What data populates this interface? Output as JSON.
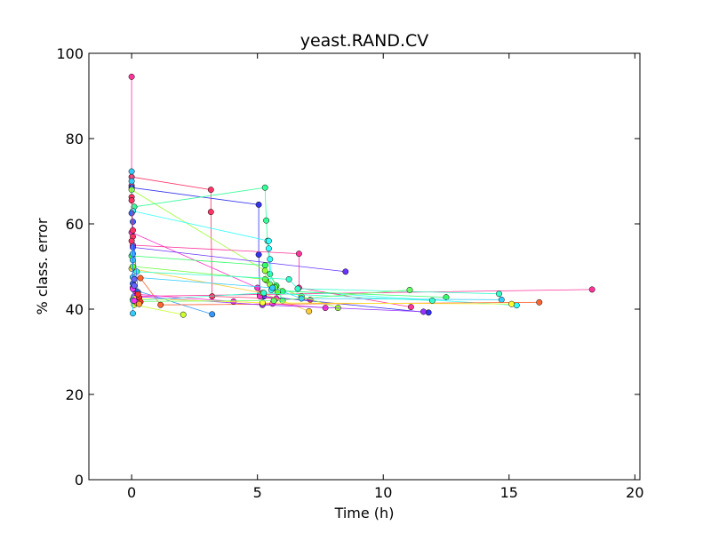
{
  "chart_data": {
    "type": "scatter",
    "title": "yeast.RAND.CV",
    "xlabel": "Time (h)",
    "ylabel": "% class. error",
    "xlim": [
      -1.7,
      20.2
    ],
    "ylim": [
      0,
      100
    ],
    "xticks": [
      0,
      5,
      10,
      15,
      20
    ],
    "yticks": [
      0,
      20,
      40,
      60,
      80,
      100
    ],
    "xtick_labels": [
      "0",
      "5",
      "10",
      "15",
      "20"
    ],
    "ytick_labels": [
      "0",
      "20",
      "40",
      "60",
      "80",
      "100"
    ],
    "grid": false,
    "legend": "none",
    "series": [
      {
        "color": "#ff3399",
        "points": [
          [
            0.0,
            94.5
          ],
          [
            0.0,
            69.0
          ],
          [
            0.05,
            45.0
          ],
          [
            0.15,
            43.0
          ],
          [
            18.3,
            44.6
          ]
        ]
      },
      {
        "color": "#ff3366",
        "points": [
          [
            0.0,
            71.0
          ],
          [
            3.15,
            68.0
          ],
          [
            3.15,
            62.8
          ],
          [
            3.2,
            43.0
          ],
          [
            7.1,
            42.2
          ]
        ]
      },
      {
        "color": "#3333ee",
        "points": [
          [
            0.0,
            68.5
          ],
          [
            5.05,
            64.5
          ],
          [
            5.05,
            52.8
          ],
          [
            5.1,
            43.5
          ],
          [
            5.25,
            43.0
          ],
          [
            11.8,
            39.2
          ]
        ]
      },
      {
        "color": "#99ff33",
        "points": [
          [
            0.0,
            68.0
          ],
          [
            5.3,
            49.0
          ],
          [
            5.35,
            46.8
          ],
          [
            5.5,
            45.8
          ],
          [
            6.75,
            43.0
          ],
          [
            8.2,
            40.3
          ]
        ]
      },
      {
        "color": "#33ff99",
        "points": [
          [
            0.1,
            64.0
          ],
          [
            5.3,
            68.5
          ],
          [
            5.35,
            60.8
          ],
          [
            5.4,
            56.0
          ],
          [
            5.5,
            48.2
          ],
          [
            6.0,
            42.0
          ]
        ]
      },
      {
        "color": "#33ffff",
        "points": [
          [
            0.05,
            63.0
          ],
          [
            5.45,
            56.0
          ],
          [
            5.45,
            54.2
          ],
          [
            5.5,
            51.7
          ],
          [
            5.55,
            44.5
          ],
          [
            15.3,
            40.9
          ]
        ]
      },
      {
        "color": "#ff33cc",
        "points": [
          [
            0.0,
            58.0
          ],
          [
            5.0,
            45.0
          ],
          [
            5.1,
            43.0
          ],
          [
            5.75,
            42.5
          ]
        ]
      },
      {
        "color": "#ff3399",
        "points": [
          [
            0.05,
            55.0
          ],
          [
            6.65,
            53.0
          ],
          [
            6.65,
            45.0
          ],
          [
            11.1,
            40.5
          ]
        ]
      },
      {
        "color": "#6633ff",
        "points": [
          [
            0.05,
            54.5
          ],
          [
            8.5,
            48.8
          ]
        ]
      },
      {
        "color": "#33ff66",
        "points": [
          [
            0.0,
            52.5
          ],
          [
            5.3,
            50.3
          ],
          [
            5.75,
            45.5
          ],
          [
            6.0,
            44.2
          ],
          [
            12.5,
            42.8
          ]
        ]
      },
      {
        "color": "#ffcc33",
        "points": [
          [
            0.0,
            49.5
          ],
          [
            5.2,
            43.8
          ],
          [
            7.05,
            39.5
          ]
        ]
      },
      {
        "color": "#66ff33",
        "points": [
          [
            0.05,
            50.0
          ],
          [
            5.3,
            47.0
          ],
          [
            5.7,
            45.1
          ],
          [
            5.8,
            44.0
          ]
        ]
      },
      {
        "color": "#33ffcc",
        "points": [
          [
            0.2,
            48.8
          ],
          [
            6.25,
            47.0
          ],
          [
            6.6,
            44.8
          ],
          [
            14.6,
            43.6
          ]
        ]
      },
      {
        "color": "#33ccff",
        "points": [
          [
            0.05,
            47.5
          ],
          [
            5.6,
            45.0
          ],
          [
            6.75,
            42.5
          ],
          [
            14.7,
            42.2
          ]
        ]
      },
      {
        "color": "#3399ff",
        "points": [
          [
            0.1,
            44.5
          ],
          [
            3.2,
            38.8
          ]
        ]
      },
      {
        "color": "#ff6633",
        "points": [
          [
            0.35,
            47.3
          ],
          [
            1.15,
            41.0
          ],
          [
            16.2,
            41.6
          ]
        ]
      },
      {
        "color": "#ccff33",
        "points": [
          [
            0.05,
            42.3
          ],
          [
            0.1,
            41.0
          ],
          [
            2.05,
            38.7
          ]
        ]
      },
      {
        "color": "#ff33cc",
        "points": [
          [
            0.15,
            43.5
          ],
          [
            4.05,
            41.8
          ],
          [
            5.6,
            41.3
          ],
          [
            7.7,
            40.3
          ]
        ]
      },
      {
        "color": "#9933ff",
        "points": [
          [
            0.1,
            43.0
          ],
          [
            5.2,
            41.0
          ],
          [
            11.6,
            39.4
          ]
        ]
      },
      {
        "color": "#ffff33",
        "points": [
          [
            0.1,
            42.5
          ],
          [
            5.2,
            41.5
          ],
          [
            15.1,
            41.2
          ]
        ]
      },
      {
        "color": "#33ffcc",
        "points": [
          [
            0.05,
            42.0
          ],
          [
            5.25,
            43.8
          ],
          [
            11.95,
            42.0
          ]
        ]
      },
      {
        "color": "#66ff66",
        "points": [
          [
            0.15,
            41.8
          ],
          [
            5.65,
            42.0
          ],
          [
            11.05,
            44.5
          ]
        ]
      },
      {
        "color": "#33ccff",
        "points": [
          [
            0.05,
            53.0
          ],
          [
            0.05,
            51.5
          ]
        ]
      },
      {
        "color": "#33ccff",
        "points": [
          [
            0.0,
            72.3
          ],
          [
            0.0,
            70.0
          ],
          [
            0.05,
            39.0
          ]
        ]
      },
      {
        "color": "#3366ff",
        "points": [
          [
            0.25,
            44.0
          ],
          [
            0.0,
            62.5
          ],
          [
            0.05,
            60.5
          ],
          [
            0.05,
            46.0
          ]
        ]
      },
      {
        "color": "#ff3366",
        "points": [
          [
            0.0,
            66.3
          ],
          [
            0.0,
            65.5
          ],
          [
            0.05,
            58.5
          ],
          [
            0.05,
            57.0
          ],
          [
            0.0,
            56.0
          ]
        ]
      },
      {
        "color": "#ff3333",
        "points": [
          [
            0.3,
            42.7
          ],
          [
            0.35,
            41.7
          ],
          [
            0.25,
            43.5
          ]
        ]
      },
      {
        "color": "#ff9933",
        "points": [
          [
            0.2,
            41.5
          ],
          [
            0.3,
            41.2
          ]
        ]
      },
      {
        "color": "#ff33ff",
        "points": [
          [
            0.05,
            44.8
          ],
          [
            0.1,
            42.0
          ]
        ]
      },
      {
        "color": "#6666ff",
        "points": [
          [
            0.1,
            47.0
          ],
          [
            0.1,
            45.5
          ]
        ]
      }
    ]
  }
}
